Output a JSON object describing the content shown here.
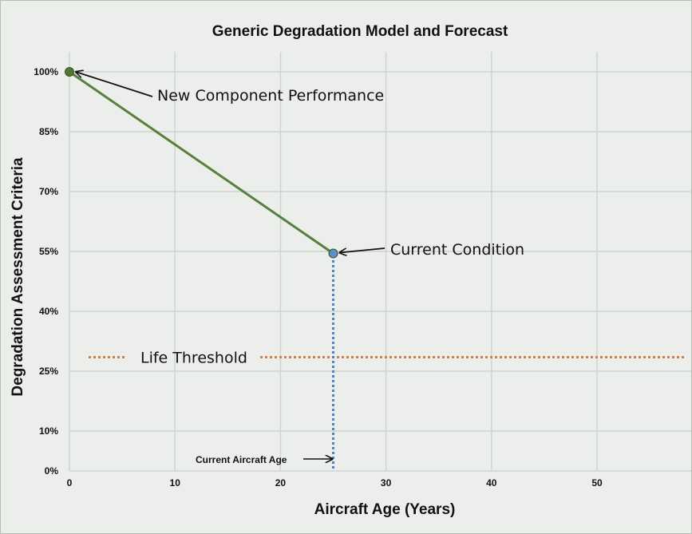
{
  "chart_data": {
    "type": "line",
    "title": "Generic Degradation Model and Forecast",
    "xlabel": "Aircraft Age  (Years)",
    "ylabel": "Degradation Assessment Criteria",
    "xlim": [
      0,
      59
    ],
    "ylim": [
      0,
      105
    ],
    "x_ticks": [
      0,
      10,
      20,
      30,
      40,
      50
    ],
    "y_ticks": [
      0,
      10,
      25,
      40,
      55,
      70,
      85,
      100
    ],
    "y_tick_labels": [
      "0%",
      "10%",
      "25%",
      "40%",
      "55%",
      "70%",
      "85%",
      "100%"
    ],
    "grid": true,
    "series": [
      {
        "x": [
          0,
          25
        ],
        "y": [
          100,
          54.5
        ],
        "color": "#5a7f3c",
        "markers": [
          {
            "x": 0,
            "y": 100,
            "color": "#4f7a35"
          },
          {
            "x": 25,
            "y": 54.5,
            "color": "#5b8fce"
          }
        ]
      }
    ],
    "threshold": {
      "y": 28.5,
      "label": "Life Threshold",
      "color": "#d08048"
    },
    "current_age_line": {
      "x": 25,
      "y_from": 0,
      "y_to": 55,
      "color": "#4f7fc4"
    },
    "annotations": {
      "new_component": "New Component Performance",
      "current_condition": "Current Condition",
      "current_age": "Current Aircraft Age"
    }
  }
}
